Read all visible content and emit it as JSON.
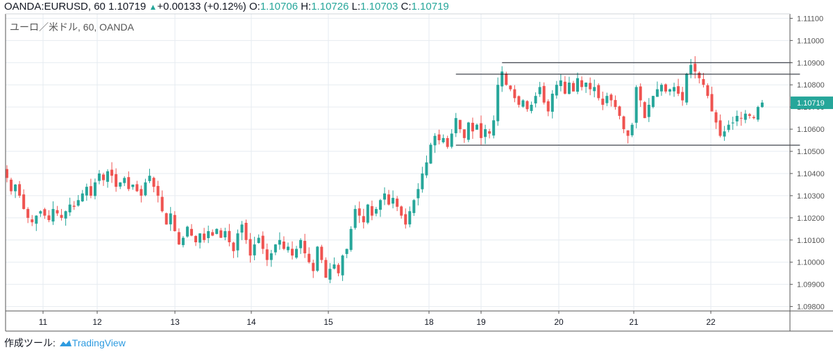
{
  "header": {
    "symbol": "OANDA:EURUSD",
    "interval": ", 60",
    "last": "1.10719",
    "change": "+0.00133 (+0.12%)",
    "o_label": "O:",
    "o": "1.10706",
    "h_label": "H:",
    "h": "1.10726",
    "l_label": "L:",
    "l": "1.10703",
    "c_label": "C:",
    "c": "1.10719"
  },
  "chart_title": "ユーロ／米ドル, 60, OANDA",
  "footer": {
    "label": "作成ツール:",
    "brand": "TradingView"
  },
  "colors": {
    "up": "#26a69a",
    "down": "#ef5350",
    "grid": "#e6ebf0",
    "price_tag": "#26a69a",
    "text": "#131722"
  },
  "chart_data": {
    "type": "candlestick",
    "ylim": [
      1.0978,
      1.1112
    ],
    "y_ticks": [
      "1.11100",
      "1.11000",
      "1.10900",
      "1.10800",
      "1.10700",
      "1.10600",
      "1.10500",
      "1.10400",
      "1.10300",
      "1.10200",
      "1.10100",
      "1.10000",
      "1.09900",
      "1.09800"
    ],
    "x_ticks": [
      "11",
      "12",
      "13",
      "14",
      "15",
      "18",
      "19",
      "20",
      "21",
      "22"
    ],
    "last_price_label": "1.10719",
    "candles_hourly_close": [
      1.1038,
      1.1032,
      1.1035,
      1.103,
      1.1024,
      1.102,
      1.1018,
      1.1021,
      1.1023,
      1.1021,
      1.1019,
      1.1024,
      1.1022,
      1.102,
      1.1023,
      1.1026,
      1.1025,
      1.1028,
      1.1031,
      1.1034,
      1.103,
      1.1036,
      1.104,
      1.1037,
      1.1041,
      1.1039,
      1.1034,
      1.1036,
      1.1038,
      1.1033,
      1.1035,
      1.1032,
      1.103,
      1.1036,
      1.1039,
      1.1034,
      1.103,
      1.1023,
      1.1017,
      1.1022,
      1.1014,
      1.1008,
      1.1011,
      1.1016,
      1.1012,
      1.1009,
      1.1013,
      1.101,
      1.1014,
      1.1012,
      1.1015,
      1.1011,
      1.1014,
      1.1009,
      1.1005,
      1.1013,
      1.1017,
      1.101,
      1.1003,
      1.1008,
      1.1011,
      1.1006,
      1.1001,
      1.1004,
      1.1008,
      1.101,
      1.1006,
      1.1007,
      1.1003,
      1.1006,
      1.101,
      1.1004,
      1.1,
      1.0996,
      1.1007,
      1.1001,
      1.0993,
      1.0997,
      1.0999,
      1.0995,
      1.1003,
      1.1006,
      1.1015,
      1.1024,
      1.1021,
      1.1018,
      1.1026,
      1.1021,
      1.1024,
      1.1028,
      1.1031,
      1.1026,
      1.1029,
      1.1025,
      1.1021,
      1.1017,
      1.1023,
      1.1028,
      1.1033,
      1.104,
      1.1045,
      1.1053,
      1.1057,
      1.1055,
      1.1056,
      1.1052,
      1.1058,
      1.1065,
      1.106,
      1.1056,
      1.1063,
      1.1059,
      1.1062,
      1.1056,
      1.106,
      1.1058,
      1.1064,
      1.108,
      1.1086,
      1.108,
      1.1078,
      1.1074,
      1.1071,
      1.1073,
      1.1069,
      1.1071,
      1.1075,
      1.1079,
      1.1072,
      1.1068,
      1.1076,
      1.108,
      1.1082,
      1.1076,
      1.1081,
      1.1077,
      1.1083,
      1.1079,
      1.1081,
      1.1078,
      1.1079,
      1.1074,
      1.1071,
      1.1075,
      1.1073,
      1.107,
      1.1066,
      1.106,
      1.1057,
      1.1062,
      1.1079,
      1.1073,
      1.1065,
      1.1071,
      1.1075,
      1.1078,
      1.108,
      1.1077,
      1.1078,
      1.1079,
      1.1076,
      1.1073,
      1.1085,
      1.1089,
      1.1086,
      1.1083,
      1.108,
      1.1075,
      1.1068,
      1.1063,
      1.1057,
      1.1059,
      1.1062,
      1.1063,
      1.1066,
      1.1065,
      1.1067,
      1.1066,
      1.1065,
      1.107,
      1.1072
    ],
    "horizontal_lines": [
      {
        "y": 1.109,
        "from_candle": 118,
        "to_candle": 187
      },
      {
        "y": 1.10848,
        "from_candle": 107,
        "to_candle": 189
      },
      {
        "y": 1.10528,
        "from_candle": 107,
        "to_candle": 189
      }
    ]
  }
}
